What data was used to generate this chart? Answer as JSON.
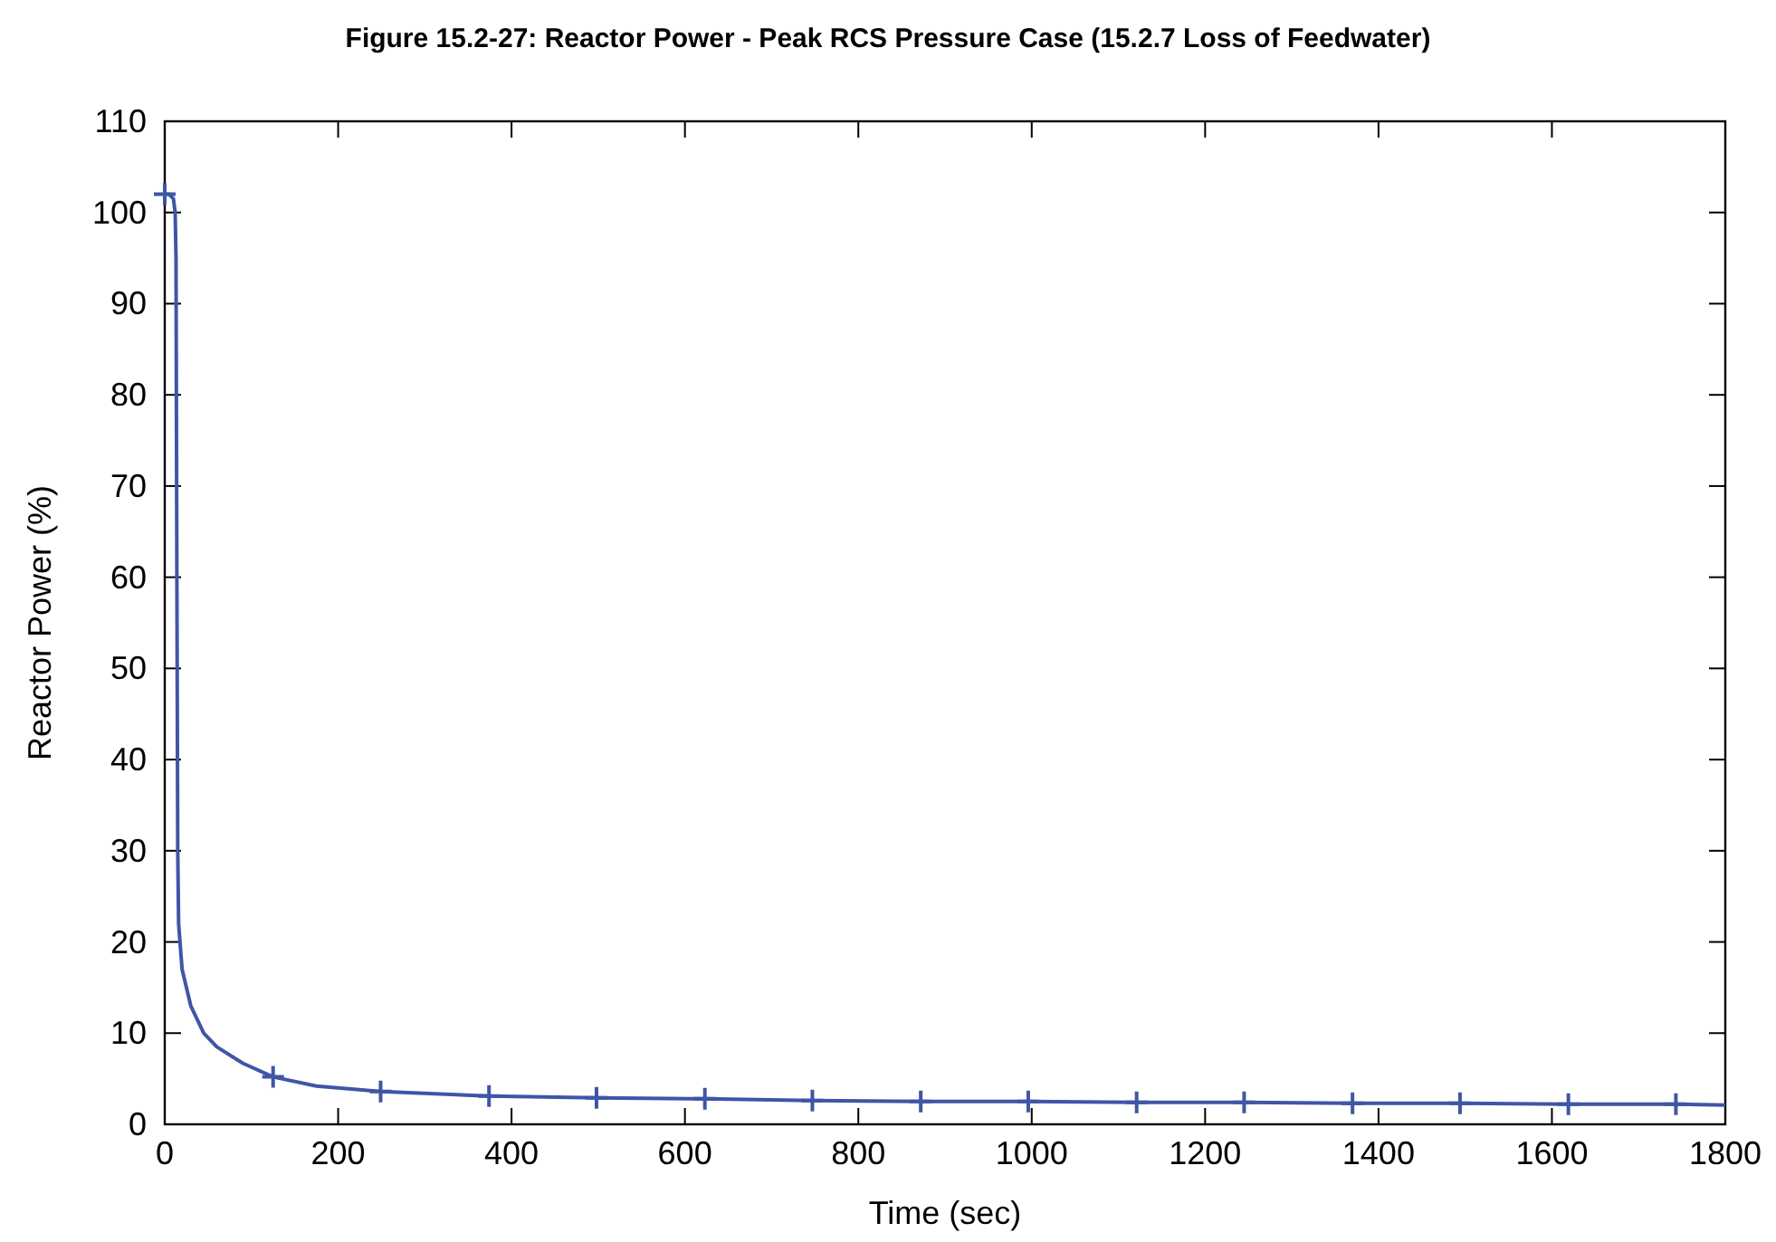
{
  "chart_data": {
    "type": "line",
    "title": "Figure 15.2-27: Reactor Power - Peak RCS Pressure Case (15.2.7 Loss of Feedwater)",
    "xlabel": "Time (sec)",
    "ylabel": "Reactor Power (%)",
    "xlim": [
      0,
      1800
    ],
    "xticks": [
      0,
      200,
      400,
      600,
      800,
      1000,
      1200,
      1400,
      1600,
      1800
    ],
    "ylim": [
      0,
      110
    ],
    "yticks": [
      0,
      10,
      20,
      30,
      40,
      50,
      60,
      70,
      80,
      90,
      100,
      110
    ],
    "grid": false,
    "series": [
      {
        "color": "#3f56a6",
        "marker": "none",
        "x": [
          0,
          5,
          10,
          12,
          13,
          14,
          15,
          16,
          20,
          30,
          45,
          60,
          90,
          125,
          175,
          249,
          374,
          498,
          623,
          747,
          872,
          996,
          1121,
          1245,
          1370,
          1494,
          1619,
          1743,
          1800
        ],
        "values": [
          102,
          102,
          101.5,
          100,
          95,
          60,
          30,
          22,
          17,
          13,
          10,
          8.5,
          6.7,
          5.2,
          4.2,
          3.6,
          3.1,
          2.9,
          2.8,
          2.6,
          2.5,
          2.5,
          2.4,
          2.4,
          2.3,
          2.3,
          2.2,
          2.2,
          2.1
        ]
      },
      {
        "type": "scatter",
        "color": "#3f56a6",
        "marker": "cross",
        "x": [
          0,
          125,
          249,
          374,
          498,
          623,
          747,
          872,
          996,
          1121,
          1245,
          1370,
          1494,
          1619,
          1743
        ],
        "values": [
          102,
          5.2,
          3.6,
          3.1,
          2.9,
          2.8,
          2.6,
          2.5,
          2.5,
          2.4,
          2.4,
          2.3,
          2.3,
          2.2,
          2.2
        ]
      }
    ]
  }
}
